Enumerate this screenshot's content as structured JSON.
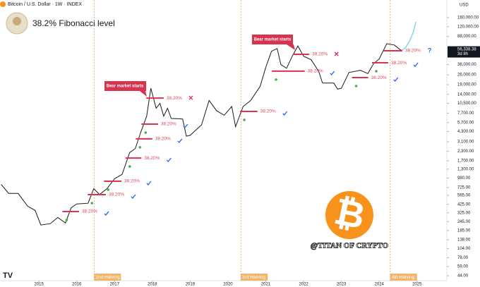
{
  "chart_data": {
    "type": "line",
    "symbol": "Bitcoin / U.S. Dollar · 1W · INDEX",
    "title": "38.2% Fibonacci level",
    "currency": "USD",
    "watermark": "@TITAN OF CRYPTO",
    "callouts": [
      "Bear market starts",
      "Bear market starts"
    ],
    "log_scale": true,
    "color": "#1a1a1a",
    "x": [
      2014.0,
      2014.2,
      2014.45,
      2014.7,
      2014.9,
      2015.05,
      2015.3,
      2015.5,
      2015.7,
      2015.85,
      2016.0,
      2016.3,
      2016.45,
      2016.6,
      2016.8,
      2017.0,
      2017.2,
      2017.4,
      2017.55,
      2017.7,
      2017.85,
      2017.96,
      2018.1,
      2018.2,
      2018.3,
      2018.4,
      2018.5,
      2018.8,
      2018.9,
      2019.0,
      2019.3,
      2019.5,
      2019.7,
      2019.9,
      2020.1,
      2020.2,
      2020.4,
      2020.6,
      2020.85,
      2021.0,
      2021.15,
      2021.3,
      2021.4,
      2021.55,
      2021.7,
      2021.85,
      2022.0,
      2022.2,
      2022.4,
      2022.5,
      2022.8,
      2022.9,
      2023.0,
      2023.2,
      2023.5,
      2023.7,
      2023.85,
      2024.0,
      2024.2,
      2024.4,
      2024.55,
      2024.6
    ],
    "values": [
      800,
      600,
      600,
      400,
      350,
      220,
      230,
      280,
      235,
      380,
      430,
      440,
      700,
      580,
      700,
      960,
      1100,
      2200,
      2500,
      4300,
      7000,
      17000,
      9000,
      10500,
      7000,
      9000,
      6500,
      6400,
      3700,
      3800,
      5300,
      11500,
      8300,
      7200,
      9500,
      5000,
      9500,
      11500,
      18000,
      33000,
      55000,
      60000,
      36000,
      32000,
      47000,
      65000,
      47000,
      42000,
      29000,
      20000,
      20000,
      16500,
      17000,
      28000,
      30000,
      27000,
      37000,
      43000,
      70000,
      67000,
      58000,
      56338.38
    ],
    "projection": {
      "color": "#7fd6e0",
      "x": [
        2024.6,
        2024.7,
        2024.8,
        2024.9,
        2024.97
      ],
      "values": [
        56338.38,
        62000,
        75000,
        100000,
        140000
      ]
    },
    "last_price": {
      "value": 56338.38,
      "label": "56,338.38"
    },
    "countdown": "3d 8h",
    "levels": [
      {
        "x": [
          2015.62,
          2016.06
        ],
        "value": 338,
        "label": "38.20%",
        "status": "check"
      },
      {
        "x": [
          2016.29,
          2016.77
        ],
        "value": 578,
        "label": "38.20%",
        "status": "check"
      },
      {
        "x": [
          2016.72,
          2017.18
        ],
        "value": 885,
        "label": "38.20%",
        "status": "check"
      },
      {
        "x": [
          2017.29,
          2017.71
        ],
        "value": 1850,
        "label": "38.20%",
        "status": "check"
      },
      {
        "x": [
          2017.56,
          2018.0
        ],
        "value": 3400,
        "label": "38.20%",
        "status": "check"
      },
      {
        "x": [
          2017.71,
          2018.15
        ],
        "value": 5430,
        "label": "38.20%",
        "status": "check"
      },
      {
        "x": [
          2017.84,
          2018.3
        ],
        "value": 12400,
        "label": "38.20%",
        "status": "cross"
      },
      {
        "x": [
          2020.32,
          2020.78
        ],
        "value": 8130,
        "label": "38.20%",
        "status": "check"
      },
      {
        "x": [
          2021.16,
          2022.03
        ],
        "value": 29200,
        "label": "38.20%",
        "status": "check"
      },
      {
        "x": [
          2021.72,
          2022.15
        ],
        "value": 49900,
        "label": "38.20%",
        "status": "cross"
      },
      {
        "x": [
          2023.28,
          2023.71
        ],
        "value": 23800,
        "label": "38.20%",
        "status": "check"
      },
      {
        "x": [
          2023.81,
          2024.24
        ],
        "value": 38100,
        "label": "38.20%",
        "status": "check"
      },
      {
        "x": [
          2024.12,
          2024.61
        ],
        "value": 55800,
        "label": "38.20%",
        "status": "?"
      }
    ],
    "halvings": [
      {
        "x": 2016.46,
        "label": "2nd Halving"
      },
      {
        "x": 2020.34,
        "label": "3rd Halving"
      },
      {
        "x": 2024.29,
        "label": "4th Halving"
      }
    ],
    "xlim": [
      2013.97,
      2025.77
    ],
    "xticks": [
      2015,
      2016,
      2017,
      2018,
      2019,
      2020,
      2021,
      2022,
      2023,
      2024,
      2025
    ],
    "ylim": [
      37.6,
      280000
    ],
    "yticks": [
      {
        "value": 160000,
        "label": "160,000.00"
      },
      {
        "value": 120000,
        "label": "120,000.00"
      },
      {
        "value": 88000,
        "label": "88,000.00"
      },
      {
        "value": 36000,
        "label": "36,000.00"
      },
      {
        "value": 26000,
        "label": "26,000.00"
      },
      {
        "value": 19000,
        "label": "19,000.00"
      },
      {
        "value": 14000,
        "label": "14,000.00"
      },
      {
        "value": 10500,
        "label": "10,500.00"
      },
      {
        "value": 7700,
        "label": "7,700.00"
      },
      {
        "value": 5700,
        "label": "5,700.00"
      },
      {
        "value": 4300,
        "label": "4,300.00"
      },
      {
        "value": 3100,
        "label": "3,100.00"
      },
      {
        "value": 2300,
        "label": "2,300.00"
      },
      {
        "value": 1700,
        "label": "1,700.00"
      },
      {
        "value": 1300,
        "label": "1,300.00"
      },
      {
        "value": 980,
        "label": "980.00"
      },
      {
        "value": 725,
        "label": "725.00"
      },
      {
        "value": 565,
        "label": "565.00"
      },
      {
        "value": 425,
        "label": "425.00"
      },
      {
        "value": 325,
        "label": "325.00"
      },
      {
        "value": 245,
        "label": "245.00"
      },
      {
        "value": 185,
        "label": "185.00"
      },
      {
        "value": 138,
        "label": "138.00"
      },
      {
        "value": 104,
        "label": "104.00"
      },
      {
        "value": 78,
        "label": "78.00"
      },
      {
        "value": 59,
        "label": "59.00"
      },
      {
        "value": 44,
        "label": "44.00"
      }
    ]
  }
}
